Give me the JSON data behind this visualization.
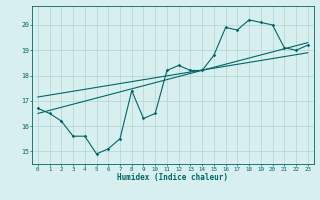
{
  "title": "",
  "xlabel": "Humidex (Indice chaleur)",
  "ylabel": "",
  "background_color": "#d7efef",
  "grid_color": "#b8d8d8",
  "line_color": "#006666",
  "xlim": [
    -0.5,
    23.5
  ],
  "ylim": [
    14.5,
    20.75
  ],
  "yticks": [
    15,
    16,
    17,
    18,
    19,
    20
  ],
  "xticks": [
    0,
    1,
    2,
    3,
    4,
    5,
    6,
    7,
    8,
    9,
    10,
    11,
    12,
    13,
    14,
    15,
    16,
    17,
    18,
    19,
    20,
    21,
    22,
    23
  ],
  "series1_x": [
    0,
    1,
    2,
    3,
    4,
    5,
    6,
    7,
    8,
    9,
    10,
    11,
    12,
    13,
    14,
    15,
    16,
    17,
    18,
    19,
    20,
    21,
    22,
    23
  ],
  "series1_y": [
    16.7,
    16.5,
    16.2,
    15.6,
    15.6,
    14.9,
    15.1,
    15.5,
    17.4,
    16.3,
    16.5,
    18.2,
    18.4,
    18.2,
    18.2,
    18.8,
    19.9,
    19.8,
    20.2,
    20.1,
    20.0,
    19.1,
    19.0,
    19.2
  ],
  "series2_x": [
    0,
    23
  ],
  "series2_y": [
    16.5,
    19.3
  ],
  "series3_x": [
    0,
    23
  ],
  "series3_y": [
    17.15,
    18.9
  ]
}
